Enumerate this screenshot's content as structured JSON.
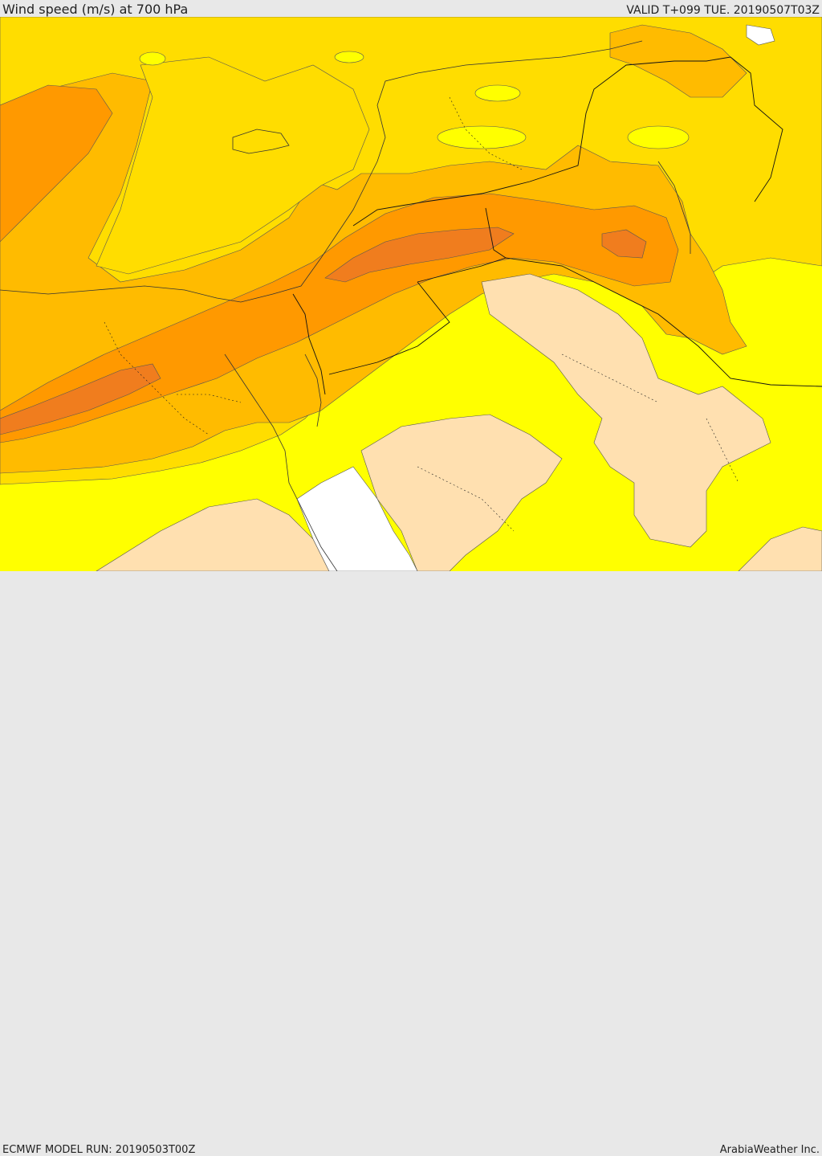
{
  "header": {
    "title": "Wind speed (m/s) at 700 hPa",
    "valid_time": "VALID T+099 TUE. 20190507T03Z"
  },
  "footer": {
    "model_run": "ECMWF MODEL RUN: 20190503T00Z",
    "credit": "ArabiaWeather Inc."
  },
  "colors": {
    "band_white": "#ffffff",
    "band_light": "#ffe0b0",
    "band_yellow": "#ffff00",
    "band_gold": "#ffdd00",
    "band_amber": "#ffbb00",
    "band_orange": "#ff9900",
    "band_dark_orange": "#f07d1e"
  }
}
